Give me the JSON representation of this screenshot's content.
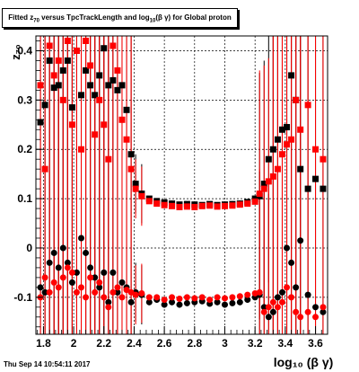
{
  "chart_data": {
    "type": "scatter",
    "title": "Fitted  z_{70} versus TpcTrackLength and log_{10}(β γ) for Global proton",
    "xlabel": "log₁₀ (β γ)",
    "ylabel": "z₇₀",
    "xlim": [
      1.75,
      3.68
    ],
    "ylim": [
      -0.175,
      0.43
    ],
    "xticks": [
      1.8,
      2.0,
      2.2,
      2.4,
      2.6,
      2.8,
      3.0,
      3.2,
      3.4,
      3.6
    ],
    "xtick_labels": [
      "1.8",
      "2",
      "2.2",
      "2.4",
      "2.6",
      "2.8",
      "3",
      "3.2",
      "3.4",
      "3.6"
    ],
    "yticks": [
      -0.1,
      0,
      0.1,
      0.2,
      0.3,
      0.4
    ],
    "ytick_labels": [
      "-0.1",
      "0",
      "0.1",
      "0.2",
      "0.3",
      "0.4"
    ],
    "grid": true,
    "series": [
      {
        "color": "#000000",
        "marker": "square",
        "x": [
          1.78,
          1.81,
          1.84,
          1.87,
          1.9,
          1.93,
          1.96,
          1.99,
          2.02,
          2.05,
          2.08,
          2.11,
          2.14,
          2.17,
          2.2,
          2.23,
          2.26,
          2.29,
          2.32,
          2.35,
          2.38,
          2.41,
          2.45,
          2.5,
          2.55,
          2.6,
          2.65,
          2.7,
          2.75,
          2.8,
          2.85,
          2.9,
          2.95,
          3.0,
          3.05,
          3.1,
          3.15,
          3.2,
          3.23,
          3.26,
          3.29,
          3.32,
          3.35,
          3.38,
          3.41,
          3.44,
          3.47,
          3.5,
          3.55,
          3.6,
          3.65
        ],
        "y": [
          0.255,
          0.29,
          0.38,
          0.325,
          0.33,
          0.36,
          0.38,
          0.285,
          0.4,
          0.31,
          0.36,
          0.33,
          0.31,
          0.35,
          0.405,
          0.33,
          0.34,
          0.32,
          0.33,
          0.28,
          0.19,
          0.13,
          0.11,
          0.1,
          0.095,
          0.092,
          0.09,
          0.088,
          0.089,
          0.088,
          0.087,
          0.089,
          0.087,
          0.088,
          0.089,
          0.09,
          0.093,
          0.1,
          0.105,
          0.13,
          0.18,
          0.2,
          0.22,
          0.24,
          0.245,
          0.35,
          0.3,
          0.16,
          0.12,
          0.14,
          0.12
        ]
      },
      {
        "color": "#ff0000",
        "marker": "square",
        "x": [
          1.78,
          1.81,
          1.84,
          1.87,
          1.9,
          1.93,
          1.96,
          1.99,
          2.02,
          2.05,
          2.08,
          2.11,
          2.14,
          2.17,
          2.2,
          2.23,
          2.26,
          2.29,
          2.32,
          2.35,
          2.38,
          2.41,
          2.45,
          2.5,
          2.55,
          2.6,
          2.65,
          2.7,
          2.75,
          2.8,
          2.85,
          2.9,
          2.95,
          3.0,
          3.05,
          3.1,
          3.15,
          3.2,
          3.23,
          3.26,
          3.29,
          3.32,
          3.35,
          3.38,
          3.41,
          3.44,
          3.47,
          3.5,
          3.55,
          3.6,
          3.65
        ],
        "y": [
          0.33,
          0.16,
          0.41,
          0.35,
          0.38,
          0.3,
          0.42,
          0.25,
          0.4,
          0.2,
          0.42,
          0.37,
          0.23,
          0.3,
          0.25,
          0.18,
          0.41,
          0.36,
          0.26,
          0.22,
          0.16,
          0.12,
          0.105,
          0.095,
          0.09,
          0.087,
          0.085,
          0.083,
          0.084,
          0.083,
          0.085,
          0.086,
          0.084,
          0.085,
          0.086,
          0.088,
          0.09,
          0.094,
          0.11,
          0.12,
          0.135,
          0.145,
          0.16,
          0.19,
          0.21,
          0.22,
          0.3,
          0.24,
          0.29,
          0.2,
          0.18
        ]
      },
      {
        "color": "#000000",
        "marker": "circle",
        "x": [
          1.78,
          1.81,
          1.84,
          1.87,
          1.9,
          1.93,
          1.96,
          1.99,
          2.02,
          2.05,
          2.08,
          2.11,
          2.14,
          2.17,
          2.2,
          2.23,
          2.26,
          2.29,
          2.32,
          2.35,
          2.38,
          2.41,
          2.45,
          2.5,
          2.55,
          2.6,
          2.65,
          2.7,
          2.75,
          2.8,
          2.85,
          2.9,
          2.95,
          3.0,
          3.05,
          3.1,
          3.15,
          3.2,
          3.23,
          3.26,
          3.29,
          3.32,
          3.35,
          3.38,
          3.41,
          3.44,
          3.47,
          3.5,
          3.55,
          3.6,
          3.65
        ],
        "y": [
          -0.08,
          -0.09,
          -0.03,
          -0.01,
          -0.04,
          0.0,
          -0.03,
          -0.07,
          -0.05,
          0.02,
          -0.01,
          -0.04,
          -0.06,
          -0.08,
          -0.05,
          -0.11,
          -0.05,
          -0.09,
          -0.07,
          -0.08,
          -0.11,
          -0.09,
          -0.095,
          -0.11,
          -0.105,
          -0.115,
          -0.11,
          -0.115,
          -0.112,
          -0.11,
          -0.108,
          -0.113,
          -0.11,
          -0.115,
          -0.112,
          -0.11,
          -0.105,
          -0.1,
          -0.095,
          -0.12,
          -0.14,
          -0.13,
          -0.1,
          -0.09,
          0.0,
          -0.03,
          -0.08,
          0.015,
          -0.095,
          -0.12,
          -0.13
        ]
      },
      {
        "color": "#ff0000",
        "marker": "circle",
        "x": [
          1.78,
          1.81,
          1.84,
          1.87,
          1.9,
          1.93,
          1.96,
          1.99,
          2.02,
          2.05,
          2.08,
          2.11,
          2.14,
          2.17,
          2.2,
          2.23,
          2.26,
          2.29,
          2.32,
          2.35,
          2.38,
          2.41,
          2.45,
          2.5,
          2.55,
          2.6,
          2.65,
          2.7,
          2.75,
          2.8,
          2.85,
          2.9,
          2.95,
          3.0,
          3.05,
          3.1,
          3.15,
          3.2,
          3.23,
          3.26,
          3.29,
          3.32,
          3.35,
          3.38,
          3.41,
          3.44,
          3.47,
          3.5,
          3.55,
          3.6,
          3.65
        ],
        "y": [
          -0.1,
          -0.06,
          -0.09,
          -0.07,
          -0.08,
          -0.06,
          -0.04,
          -0.05,
          -0.09,
          -0.08,
          -0.1,
          -0.06,
          -0.09,
          -0.07,
          -0.1,
          -0.12,
          -0.09,
          -0.08,
          -0.1,
          -0.085,
          -0.09,
          -0.095,
          -0.092,
          -0.1,
          -0.1,
          -0.105,
          -0.1,
          -0.103,
          -0.1,
          -0.102,
          -0.1,
          -0.105,
          -0.1,
          -0.102,
          -0.1,
          -0.098,
          -0.095,
          -0.092,
          -0.09,
          -0.13,
          -0.12,
          -0.11,
          -0.12,
          -0.11,
          -0.08,
          -0.1,
          -0.13,
          -0.14,
          -0.13,
          -0.14,
          -0.12
        ]
      }
    ]
  },
  "footer": {
    "date": "Thu Sep 14 10:54:11 2017"
  }
}
